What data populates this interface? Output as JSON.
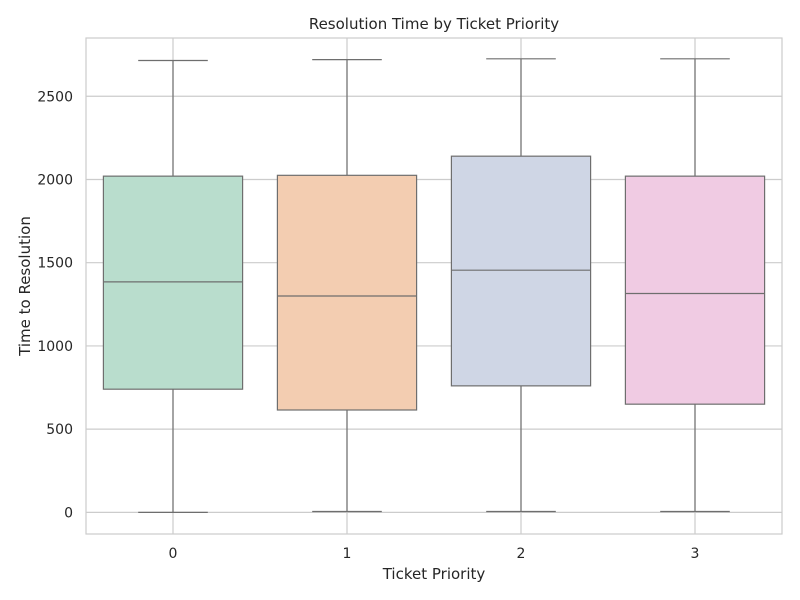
{
  "chart_data": {
    "type": "box",
    "title": "Resolution Time by Ticket Priority",
    "xlabel": "Ticket Priority",
    "ylabel": "Time to Resolution",
    "categories": [
      "0",
      "1",
      "2",
      "3"
    ],
    "ylim": [
      -130,
      2850
    ],
    "yticks": [
      0,
      500,
      1000,
      1500,
      2000,
      2500
    ],
    "grid": true,
    "boxes": [
      {
        "category": "0",
        "min": 0,
        "q1": 740,
        "median": 1385,
        "q3": 2020,
        "max": 2715,
        "color": "#b9ddcd"
      },
      {
        "category": "1",
        "min": 5,
        "q1": 615,
        "median": 1300,
        "q3": 2025,
        "max": 2720,
        "color": "#f3cdb1"
      },
      {
        "category": "2",
        "min": 5,
        "q1": 760,
        "median": 1455,
        "q3": 2140,
        "max": 2725,
        "color": "#cfd6e5"
      },
      {
        "category": "3",
        "min": 5,
        "q1": 650,
        "median": 1315,
        "q3": 2020,
        "max": 2725,
        "color": "#f0cbe3"
      }
    ]
  }
}
